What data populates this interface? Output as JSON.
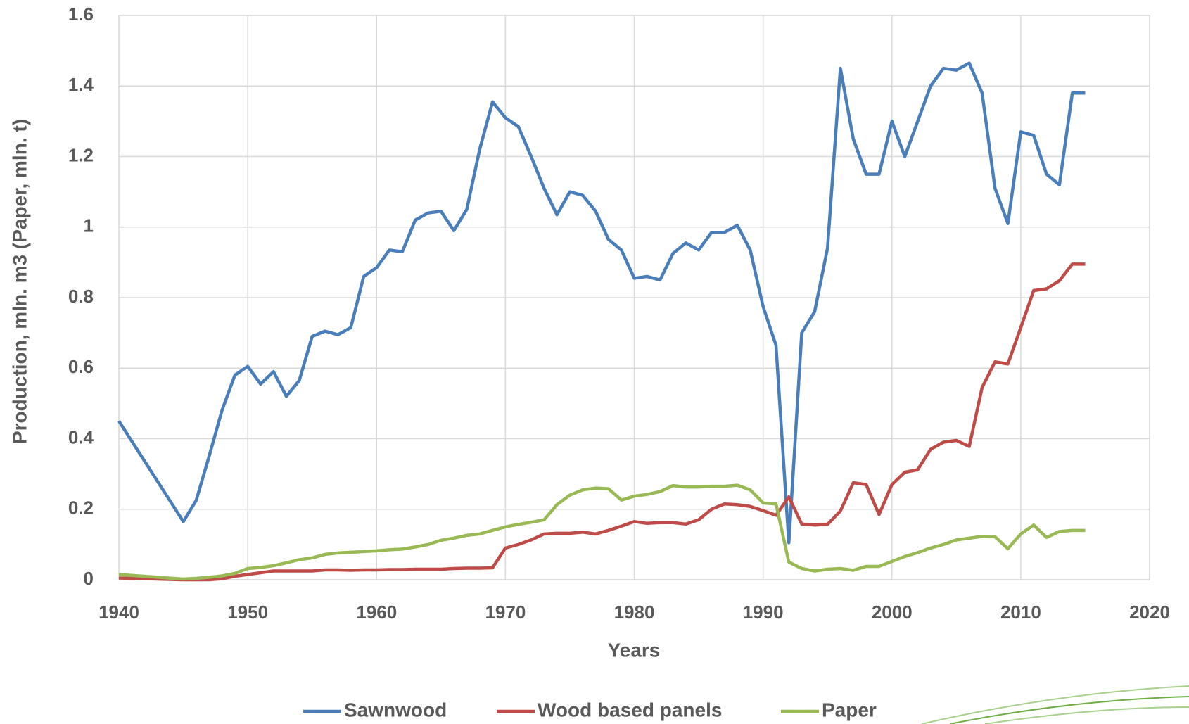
{
  "chart_data": {
    "type": "line",
    "x_label": "Years",
    "y_label": "Production, mln. m3 (Paper, mln. t)",
    "xlim": [
      1940,
      2020
    ],
    "xticks": [
      1940,
      1950,
      1960,
      1970,
      1980,
      1990,
      2000,
      2010,
      2020
    ],
    "ylim": [
      0,
      1.6
    ],
    "yticks": [
      0,
      0.2,
      0.4,
      0.6,
      0.8,
      1,
      1.2,
      1.4,
      1.6
    ],
    "grid": true,
    "legend": "bottom",
    "x": [
      1940,
      1945,
      1946,
      1947,
      1948,
      1949,
      1950,
      1951,
      1952,
      1953,
      1954,
      1955,
      1956,
      1957,
      1958,
      1959,
      1960,
      1961,
      1962,
      1963,
      1964,
      1965,
      1966,
      1967,
      1968,
      1969,
      1970,
      1971,
      1972,
      1973,
      1974,
      1975,
      1976,
      1977,
      1978,
      1979,
      1980,
      1981,
      1982,
      1983,
      1984,
      1985,
      1986,
      1987,
      1988,
      1989,
      1990,
      1991,
      1992,
      1993,
      1994,
      1995,
      1996,
      1997,
      1998,
      1999,
      2000,
      2001,
      2002,
      2003,
      2004,
      2005,
      2006,
      2007,
      2008,
      2009,
      2010,
      2011,
      2012,
      2013,
      2014,
      2015
    ],
    "series": [
      {
        "name": "Sawnwood",
        "color": "#4a7ebb",
        "values": [
          0.45,
          0.165,
          0.225,
          0.35,
          0.48,
          0.58,
          0.605,
          0.555,
          0.59,
          0.52,
          0.565,
          0.69,
          0.705,
          0.695,
          0.715,
          0.86,
          0.885,
          0.935,
          0.93,
          1.02,
          1.04,
          1.045,
          0.99,
          1.05,
          1.22,
          1.355,
          1.31,
          1.285,
          1.2,
          1.11,
          1.035,
          1.1,
          1.09,
          1.045,
          0.965,
          0.935,
          0.855,
          0.86,
          0.85,
          0.925,
          0.955,
          0.935,
          0.985,
          0.985,
          1.005,
          0.935,
          0.775,
          0.665,
          0.105,
          0.7,
          0.76,
          0.94,
          1.45,
          1.25,
          1.15,
          1.15,
          1.3,
          1.2,
          1.3,
          1.4,
          1.45,
          1.445,
          1.465,
          1.38,
          1.11,
          1.01,
          1.27,
          1.26,
          1.15,
          1.12,
          1.38,
          1.38
        ]
      },
      {
        "name": "Wood based panels",
        "color": "#be4b48",
        "values": [
          0.005,
          0,
          0,
          0,
          0.003,
          0.01,
          0.015,
          0.02,
          0.025,
          0.025,
          0.025,
          0.025,
          0.028,
          0.028,
          0.027,
          0.028,
          0.028,
          0.029,
          0.029,
          0.03,
          0.03,
          0.03,
          0.032,
          0.033,
          0.033,
          0.034,
          0.09,
          0.1,
          0.113,
          0.13,
          0.132,
          0.132,
          0.135,
          0.13,
          0.14,
          0.152,
          0.165,
          0.16,
          0.162,
          0.162,
          0.158,
          0.17,
          0.2,
          0.215,
          0.213,
          0.208,
          0.196,
          0.183,
          0.235,
          0.158,
          0.155,
          0.157,
          0.195,
          0.275,
          0.27,
          0.185,
          0.27,
          0.305,
          0.312,
          0.37,
          0.39,
          0.395,
          0.378,
          0.545,
          0.618,
          0.612,
          0.715,
          0.82,
          0.825,
          0.848,
          0.895,
          0.895
        ]
      },
      {
        "name": "Paper",
        "color": "#98b954",
        "values": [
          0.015,
          0.002,
          0.004,
          0.007,
          0.011,
          0.018,
          0.032,
          0.035,
          0.04,
          0.048,
          0.057,
          0.062,
          0.072,
          0.076,
          0.078,
          0.08,
          0.082,
          0.085,
          0.087,
          0.093,
          0.1,
          0.112,
          0.118,
          0.126,
          0.13,
          0.14,
          0.15,
          0.157,
          0.163,
          0.17,
          0.213,
          0.24,
          0.255,
          0.26,
          0.258,
          0.226,
          0.237,
          0.242,
          0.25,
          0.267,
          0.263,
          0.263,
          0.265,
          0.265,
          0.268,
          0.255,
          0.218,
          0.215,
          0.05,
          0.032,
          0.025,
          0.03,
          0.032,
          0.027,
          0.038,
          0.038,
          0.052,
          0.066,
          0.077,
          0.09,
          0.1,
          0.113,
          0.118,
          0.123,
          0.122,
          0.088,
          0.13,
          0.155,
          0.12,
          0.137,
          0.14,
          0.14
        ]
      }
    ]
  }
}
